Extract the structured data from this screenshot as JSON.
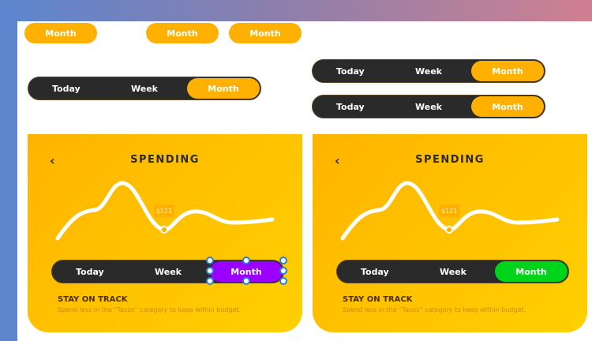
{
  "top_pills": [
    "Month",
    "Month",
    "Month"
  ],
  "segments": [
    {
      "options": [
        "Today",
        "Week",
        "Month"
      ],
      "active": "Month"
    },
    {
      "options": [
        "Today",
        "Week",
        "Month"
      ],
      "active": "Month"
    },
    {
      "options": [
        "Today",
        "Week",
        "Month"
      ],
      "active": "Month"
    }
  ],
  "cards": [
    {
      "title": "SPENDING",
      "tag": "$121",
      "options": [
        "Today",
        "Week",
        "Month"
      ],
      "active_color": "#9b00ff",
      "heading": "STAY ON TRACK",
      "body": "Spend less in the “Tacos” category to keep within budget."
    },
    {
      "title": "SPENDING",
      "tag": "$121",
      "options": [
        "Today",
        "Week",
        "Month"
      ],
      "active_color": "#00d41a",
      "heading": "STAY ON TRACK",
      "body": "Spend less in the “Tacos” category to keep within budget."
    }
  ],
  "colors": {
    "accent": "#ffb000",
    "dark": "#2a2a2a",
    "selection": "#2b7de0"
  }
}
